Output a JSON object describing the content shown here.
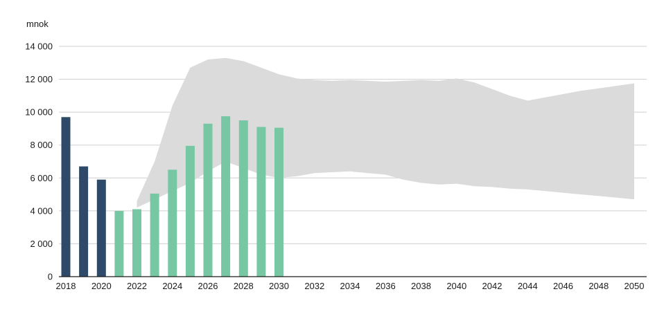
{
  "chart_data": {
    "type": "bar",
    "title": "",
    "ylabel": "mnok",
    "xlabel": "",
    "ylim": [
      0,
      14000
    ],
    "x_range": [
      2018,
      2050
    ],
    "grid": "horizontal",
    "legend": "none",
    "yticks": {
      "values": [
        0,
        2000,
        4000,
        6000,
        8000,
        10000,
        12000,
        14000
      ],
      "labels": [
        "0",
        "2 000",
        "4 000",
        "6 000",
        "8 000",
        "10 000",
        "12 000",
        "14 000"
      ]
    },
    "xticks": {
      "values": [
        2018,
        2020,
        2022,
        2024,
        2026,
        2028,
        2030,
        2032,
        2034,
        2036,
        2038,
        2040,
        2042,
        2044,
        2046,
        2048,
        2050
      ],
      "labels": [
        "2018",
        "2020",
        "2022",
        "2024",
        "2026",
        "2028",
        "2030",
        "2032",
        "2034",
        "2036",
        "2038",
        "2040",
        "2042",
        "2044",
        "2046",
        "2048",
        "2050"
      ]
    },
    "series": [
      {
        "name": "historical-bars",
        "type": "bar",
        "color": "#2E4A68",
        "x": [
          2018,
          2019,
          2020
        ],
        "values": [
          9700,
          6700,
          5900
        ]
      },
      {
        "name": "forecast-bars",
        "type": "bar",
        "color": "#77C7A4",
        "x": [
          2021,
          2022,
          2023,
          2024,
          2025,
          2026,
          2027,
          2028,
          2029,
          2030
        ],
        "values": [
          4000,
          4100,
          5050,
          6500,
          7950,
          9300,
          9750,
          9500,
          9100,
          9050
        ]
      },
      {
        "name": "uncertainty-band",
        "type": "area",
        "color": "#DBDBDB",
        "x": [
          2022,
          2023,
          2024,
          2025,
          2026,
          2027,
          2028,
          2029,
          2030,
          2031,
          2032,
          2033,
          2034,
          2035,
          2036,
          2037,
          2038,
          2039,
          2040,
          2041,
          2042,
          2043,
          2044,
          2045,
          2046,
          2047,
          2048,
          2049,
          2050
        ],
        "upper": [
          4600,
          7000,
          10400,
          12700,
          13200,
          13300,
          13100,
          12700,
          12300,
          12050,
          11950,
          11900,
          11950,
          11900,
          11850,
          11900,
          11950,
          11900,
          12050,
          11800,
          11400,
          11000,
          10700,
          10900,
          11100,
          11300,
          11450,
          11600,
          11750
        ],
        "lower": [
          4200,
          4700,
          5200,
          5700,
          6400,
          7000,
          6600,
          6200,
          6000,
          6100,
          6300,
          6350,
          6400,
          6300,
          6200,
          5900,
          5700,
          5600,
          5650,
          5500,
          5450,
          5350,
          5300,
          5200,
          5100,
          5000,
          4900,
          4800,
          4700
        ]
      }
    ]
  }
}
